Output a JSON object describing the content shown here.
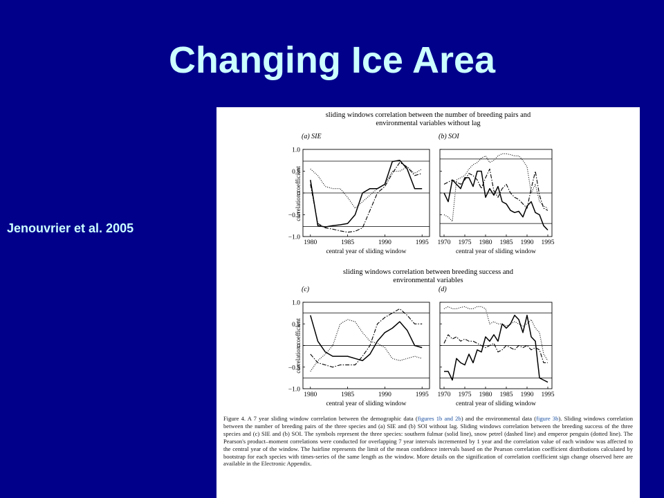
{
  "slide": {
    "title": "Changing Ice Area",
    "citation": "Jenouvrier et al. 2005"
  },
  "figure": {
    "top_heading": [
      "sliding windows correlation between the number of breeding pairs and",
      "environmental variables without lag"
    ],
    "middle_heading": [
      "sliding windows correlation between breeding success and",
      "environmental variables"
    ],
    "ylabel": "correlation coefficient",
    "caption": {
      "lead": "Figure 4. A 7 year sliding window correlation between the demographic data (",
      "ref1": "figures 1b and 2b",
      "mid1": ") and the environmental data (",
      "ref2": "figure 3b",
      "rest": "). Sliding windows correlation between the number of breeding pairs of the three species and (a) SIE and (b) SOI without lag. Sliding windows correlation between the breeding success of the three species and (c) SIE and (b) SOI. The symbols represent the three species: southern fulmar (solid line), snow petrel (dashed line) and emperor penguin (dotted line). The Pearson's product–moment correlations were conducted for overlapping 7 year intervals incremented by 1 year and the correlation value of each window was affected to the central year of the window. The hairline represents the limit of the mean confidence intervals based on the Pearson correlation coefficient distributions calculated by bootstrap for each species with times-series of the same length as the window. More details on the signification of correlation coefficient sign change observed here are available in the Electronic Appendix."
    }
  },
  "chart_data": [
    {
      "id": "a",
      "type": "line",
      "panel_label": "(a) SIE",
      "xlabel": "central year of sliding window",
      "ylabel": "correlation coefficient",
      "xlim": [
        1979,
        1996
      ],
      "ylim": [
        -1.0,
        1.0
      ],
      "xticks": [
        1980,
        1985,
        1990,
        1995
      ],
      "yticks": [
        "1.0",
        "0.5",
        "0",
        "−0.5",
        "−1.0"
      ],
      "hlines": [
        0.73,
        -0.77
      ],
      "series": [
        {
          "style": "solid",
          "x": [
            1980,
            1981,
            1982,
            1983,
            1984,
            1985,
            1986,
            1987,
            1988,
            1989,
            1990,
            1991,
            1992,
            1993,
            1994,
            1995
          ],
          "y": [
            0.3,
            -0.75,
            -0.78,
            -0.75,
            -0.73,
            -0.7,
            -0.5,
            0.0,
            0.1,
            0.1,
            0.2,
            0.72,
            0.75,
            0.55,
            0.1,
            0.1
          ]
        },
        {
          "style": "dashed",
          "x": [
            1980,
            1981,
            1982,
            1983,
            1984,
            1985,
            1986,
            1987,
            1988,
            1989,
            1990,
            1991,
            1992,
            1993,
            1994,
            1995
          ],
          "y": [
            0.2,
            -0.7,
            -0.8,
            -0.83,
            -0.87,
            -0.9,
            -0.88,
            -0.8,
            -0.4,
            0.0,
            0.15,
            0.45,
            0.7,
            0.6,
            0.4,
            0.45
          ]
        },
        {
          "style": "dotted",
          "x": [
            1980,
            1981,
            1982,
            1983,
            1984,
            1985,
            1986,
            1987,
            1988,
            1989,
            1990,
            1991,
            1992,
            1993,
            1994,
            1995
          ],
          "y": [
            0.55,
            0.4,
            0.15,
            0.1,
            0.1,
            -0.1,
            -0.35,
            -0.2,
            -0.05,
            0.1,
            0.2,
            0.5,
            0.5,
            0.6,
            0.45,
            0.55
          ]
        }
      ]
    },
    {
      "id": "b",
      "type": "line",
      "panel_label": "(b) SOI",
      "xlabel": "central year of sliding window",
      "ylabel": "",
      "xlim": [
        1969,
        1996
      ],
      "ylim": [
        -1.0,
        1.0
      ],
      "xticks": [
        1970,
        1975,
        1980,
        1985,
        1990,
        1995
      ],
      "yticks": [],
      "hlines": [
        0.78,
        -0.7
      ],
      "series": [
        {
          "style": "solid",
          "x": [
            1970,
            1971,
            1972,
            1973,
            1974,
            1975,
            1976,
            1977,
            1978,
            1979,
            1980,
            1981,
            1982,
            1983,
            1984,
            1985,
            1986,
            1987,
            1988,
            1989,
            1990,
            1991,
            1992,
            1993,
            1994,
            1995
          ],
          "y": [
            0.0,
            -0.2,
            0.3,
            0.2,
            0.1,
            0.35,
            0.35,
            0.15,
            0.5,
            0.5,
            -0.1,
            0.1,
            -0.05,
            0.15,
            -0.2,
            -0.25,
            -0.4,
            -0.45,
            -0.42,
            -0.55,
            -0.3,
            -0.2,
            -0.45,
            -0.5,
            -0.75,
            -0.85
          ]
        },
        {
          "style": "dashed",
          "x": [
            1970,
            1971,
            1972,
            1973,
            1974,
            1975,
            1976,
            1977,
            1978,
            1979,
            1980,
            1981,
            1982,
            1983,
            1984,
            1985,
            1986,
            1987,
            1988,
            1989,
            1990,
            1991,
            1992,
            1993,
            1994,
            1995
          ],
          "y": [
            0.2,
            0.25,
            0.3,
            0.25,
            0.2,
            0.3,
            0.45,
            0.4,
            0.3,
            0.1,
            0.35,
            0.55,
            0.05,
            -0.1,
            0.1,
            0.2,
            0.0,
            -0.1,
            -0.15,
            -0.25,
            -0.35,
            0.1,
            0.5,
            -0.05,
            -0.35,
            -0.4
          ]
        },
        {
          "style": "dotted",
          "x": [
            1970,
            1971,
            1972,
            1973,
            1974,
            1975,
            1976,
            1977,
            1978,
            1979,
            1980,
            1981,
            1982,
            1983,
            1984,
            1985,
            1986,
            1987,
            1988,
            1989,
            1990,
            1991,
            1992,
            1993,
            1994,
            1995
          ],
          "y": [
            -0.5,
            -0.55,
            -0.65,
            0.3,
            0.35,
            0.4,
            0.55,
            0.65,
            0.7,
            0.8,
            0.85,
            0.7,
            0.75,
            0.85,
            0.9,
            0.9,
            0.88,
            0.85,
            0.85,
            0.75,
            0.6,
            0.0,
            0.2,
            -0.2,
            -0.3,
            -0.35
          ]
        }
      ]
    },
    {
      "id": "c",
      "type": "line",
      "panel_label": "(c)",
      "xlabel": "central year of sliding window",
      "ylabel": "correlation coefficient",
      "xlim": [
        1979,
        1996
      ],
      "ylim": [
        -1.0,
        1.0
      ],
      "xticks": [
        1980,
        1985,
        1990,
        1995
      ],
      "yticks": [
        "1.0",
        "0.5",
        "0",
        "−0.5",
        "−1.0"
      ],
      "hlines": [
        0.75,
        -0.75
      ],
      "series": [
        {
          "style": "solid",
          "x": [
            1980,
            1981,
            1982,
            1983,
            1984,
            1985,
            1986,
            1987,
            1988,
            1989,
            1990,
            1991,
            1992,
            1993,
            1994,
            1995
          ],
          "y": [
            0.7,
            0.1,
            -0.15,
            -0.25,
            -0.25,
            -0.25,
            -0.3,
            -0.35,
            -0.2,
            0.1,
            0.3,
            0.4,
            0.55,
            0.35,
            0.0,
            -0.05
          ]
        },
        {
          "style": "dashed",
          "x": [
            1980,
            1981,
            1982,
            1983,
            1984,
            1985,
            1986,
            1987,
            1988,
            1989,
            1990,
            1991,
            1992,
            1993,
            1994,
            1995
          ],
          "y": [
            -0.2,
            -0.4,
            -0.45,
            -0.5,
            -0.45,
            -0.45,
            -0.45,
            -0.25,
            0.0,
            0.5,
            0.65,
            0.75,
            0.85,
            0.7,
            0.5,
            0.5
          ]
        },
        {
          "style": "dotted",
          "x": [
            1980,
            1981,
            1982,
            1983,
            1984,
            1985,
            1986,
            1987,
            1988,
            1989,
            1990,
            1991,
            1992,
            1993,
            1994,
            1995
          ],
          "y": [
            -0.6,
            -0.35,
            -0.2,
            0.0,
            0.5,
            0.6,
            0.55,
            0.3,
            0.1,
            0.05,
            -0.05,
            -0.3,
            -0.35,
            -0.3,
            -0.25,
            -0.3
          ]
        }
      ]
    },
    {
      "id": "d",
      "type": "line",
      "panel_label": "(d)",
      "xlabel": "central year of sliding window",
      "ylabel": "",
      "xlim": [
        1969,
        1996
      ],
      "ylim": [
        -1.0,
        1.0
      ],
      "xticks": [
        1970,
        1975,
        1980,
        1985,
        1990,
        1995
      ],
      "yticks": [],
      "hlines": [
        0.75,
        -0.75
      ],
      "series": [
        {
          "style": "solid",
          "x": [
            1970,
            1971,
            1972,
            1973,
            1974,
            1975,
            1976,
            1977,
            1978,
            1979,
            1980,
            1981,
            1982,
            1983,
            1984,
            1985,
            1986,
            1987,
            1988,
            1989,
            1990,
            1991,
            1992,
            1993,
            1994,
            1995
          ],
          "y": [
            -0.6,
            -0.6,
            -0.8,
            -0.3,
            -0.4,
            -0.45,
            -0.2,
            -0.4,
            -0.1,
            -0.15,
            0.2,
            0.1,
            0.25,
            0.1,
            0.5,
            0.4,
            0.5,
            0.7,
            0.6,
            0.3,
            0.7,
            0.2,
            0.1,
            -0.75,
            -0.8,
            -0.85
          ]
        },
        {
          "style": "dashed",
          "x": [
            1970,
            1971,
            1972,
            1973,
            1974,
            1975,
            1976,
            1977,
            1978,
            1979,
            1980,
            1981,
            1982,
            1983,
            1984,
            1985,
            1986,
            1987,
            1988,
            1989,
            1990,
            1991,
            1992,
            1993,
            1994,
            1995
          ],
          "y": [
            0.05,
            0.25,
            0.15,
            0.2,
            0.1,
            0.15,
            0.1,
            0.1,
            0.05,
            0.0,
            -0.05,
            0.0,
            0.05,
            -0.15,
            -0.1,
            0.0,
            -0.05,
            -0.1,
            0.0,
            -0.05,
            0.0,
            -0.1,
            -0.05,
            -0.1,
            -0.4,
            -0.4
          ]
        },
        {
          "style": "dotted",
          "x": [
            1970,
            1971,
            1972,
            1973,
            1974,
            1975,
            1976,
            1977,
            1978,
            1979,
            1980,
            1981,
            1982,
            1983,
            1984,
            1985,
            1986,
            1987,
            1988,
            1989,
            1990,
            1991,
            1992,
            1993,
            1994,
            1995
          ],
          "y": [
            0.85,
            0.9,
            0.85,
            0.85,
            0.88,
            0.9,
            0.85,
            0.85,
            0.9,
            0.9,
            0.85,
            0.5,
            0.55,
            0.5,
            0.5,
            0.45,
            0.5,
            0.55,
            0.5,
            0.45,
            0.5,
            0.6,
            0.4,
            0.3,
            -0.2,
            -0.35
          ]
        }
      ]
    }
  ]
}
